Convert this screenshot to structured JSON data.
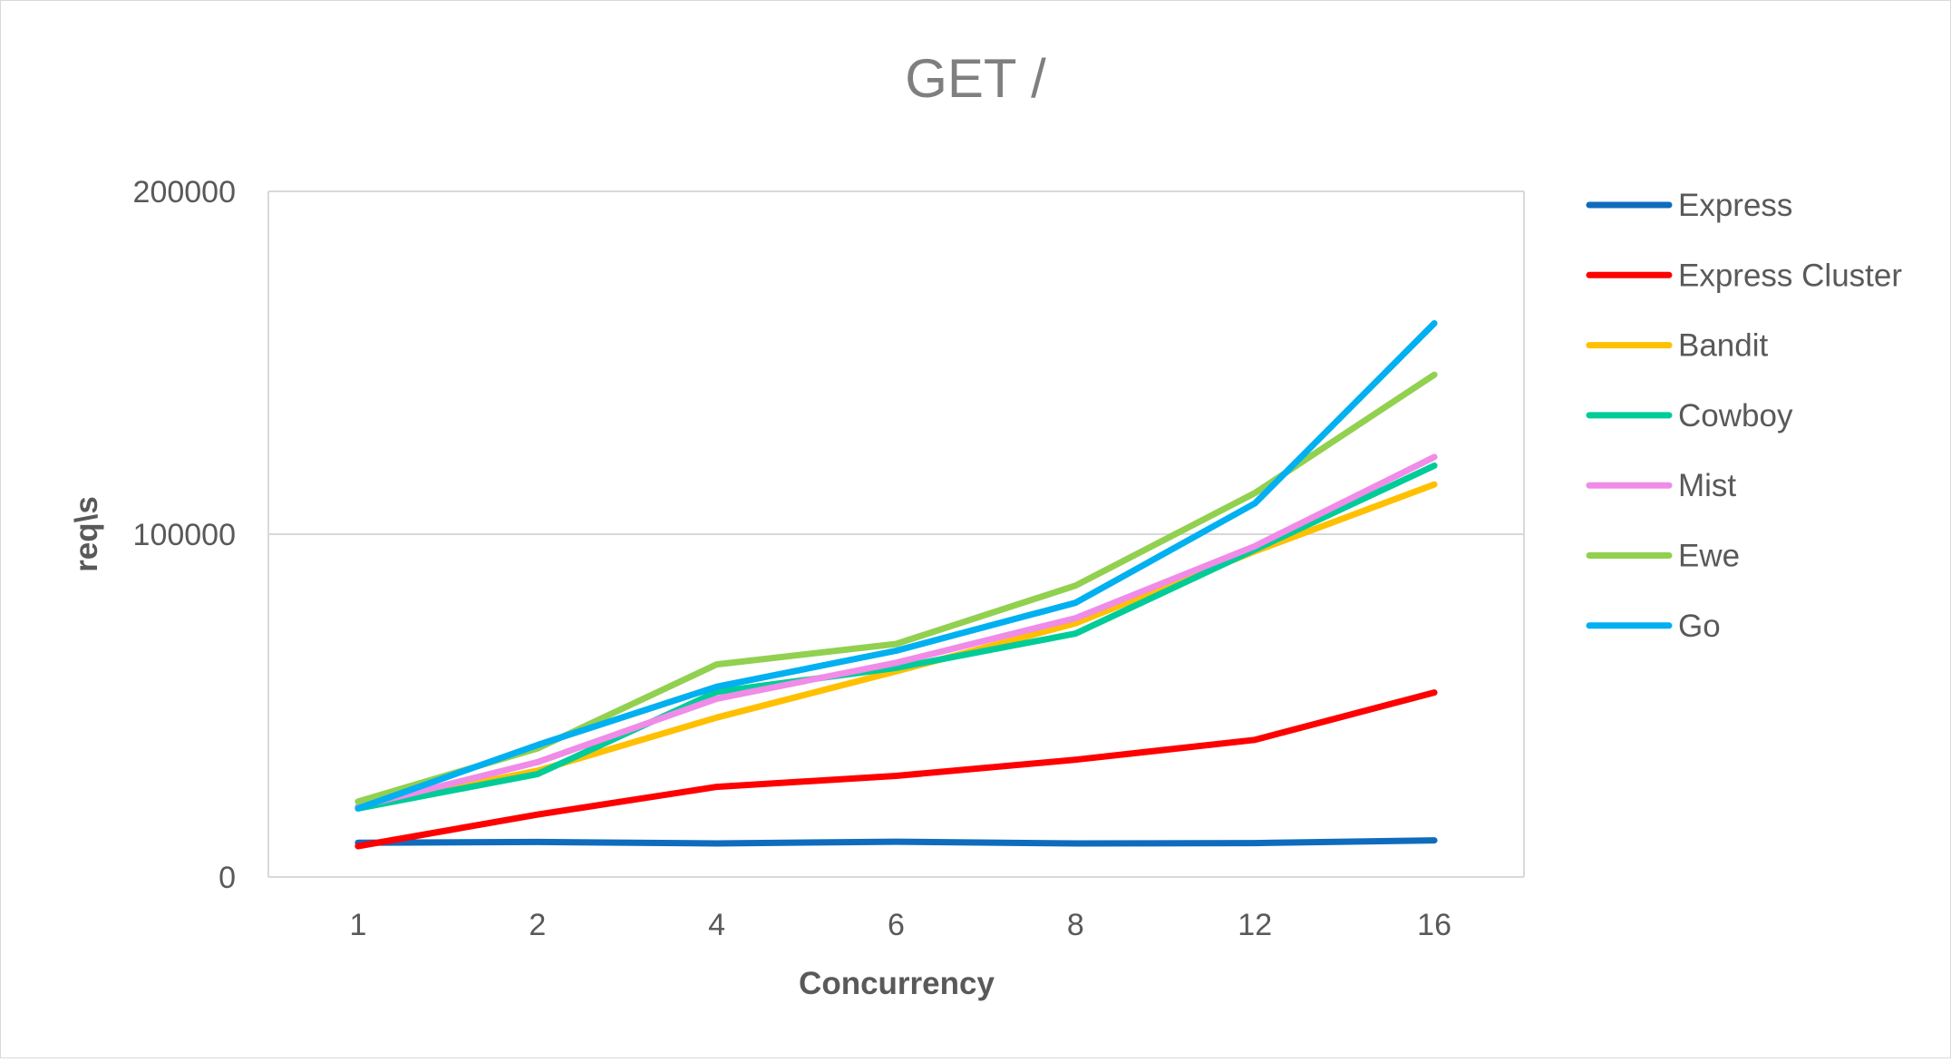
{
  "chart_data": {
    "type": "line",
    "title": "GET /",
    "xlabel": "Concurrency",
    "ylabel": "req\\s",
    "categories": [
      "1",
      "2",
      "4",
      "6",
      "8",
      "12",
      "16"
    ],
    "ylim": [
      0,
      200000
    ],
    "yticks": [
      0,
      100000,
      200000
    ],
    "grid": "horizontal",
    "legend": "right",
    "series": [
      {
        "name": "Express",
        "color": "#0F6CBD",
        "values": [
          10000,
          10200,
          9800,
          10300,
          9800,
          9900,
          10700
        ]
      },
      {
        "name": "Express Cluster",
        "color": "#FF0000",
        "values": [
          9000,
          18200,
          26300,
          29500,
          34200,
          40000,
          53800
        ]
      },
      {
        "name": "Bandit",
        "color": "#FFC000",
        "values": [
          20500,
          31000,
          46500,
          60000,
          74000,
          95000,
          114500
        ]
      },
      {
        "name": "Cowboy",
        "color": "#00CC99",
        "values": [
          20000,
          30000,
          54000,
          61000,
          71000,
          95500,
          120000
        ]
      },
      {
        "name": "Mist",
        "color": "#F08BE8",
        "values": [
          20500,
          33500,
          52000,
          62500,
          75500,
          96500,
          122500
        ]
      },
      {
        "name": "Ewe",
        "color": "#92D050",
        "values": [
          22000,
          37500,
          62000,
          68000,
          85000,
          112000,
          146500
        ]
      },
      {
        "name": "Go",
        "color": "#00B0F0",
        "values": [
          20000,
          38500,
          55500,
          66000,
          80000,
          109000,
          161500
        ]
      }
    ]
  }
}
